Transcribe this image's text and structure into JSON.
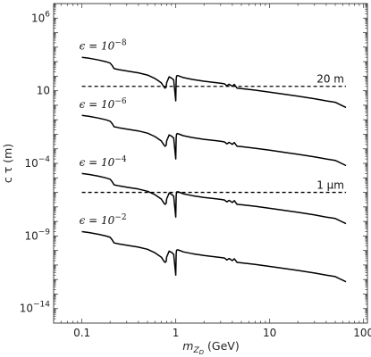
{
  "chart_data": {
    "type": "line",
    "title": "",
    "xlabel_base": "m",
    "xlabel_sub": "Z",
    "xlabel_subsub": "D",
    "xlabel_unit": " (GeV)",
    "ylabel": "c τ (m)",
    "x_scale": "log",
    "y_scale": "log",
    "xlim": [
      0.05,
      110
    ],
    "ylim": [
      1e-15,
      10000000.0
    ],
    "grid": false,
    "legend": "none",
    "x_ticks": [
      {
        "value": 0.1,
        "label": "0.1"
      },
      {
        "value": 1,
        "label": "1"
      },
      {
        "value": 10,
        "label": "10"
      },
      {
        "value": 100,
        "label": "100"
      }
    ],
    "y_ticks": [
      {
        "value": 1000000.0,
        "base": "10",
        "exp": "6"
      },
      {
        "value": 10,
        "base": "10",
        "exp": ""
      },
      {
        "value": 0.0001,
        "base": "10",
        "exp": "−4"
      },
      {
        "value": 1e-09,
        "base": "10",
        "exp": "−9"
      },
      {
        "value": 1e-14,
        "base": "10",
        "exp": "−14"
      }
    ],
    "reference_lines": [
      {
        "label": "20 m",
        "y": 20
      },
      {
        "label": "1 μm",
        "y": 1e-06
      }
    ],
    "annotations": [
      {
        "base": "ϵ = 10",
        "exp": "−8",
        "x": 0.1,
        "y": 5000.0
      },
      {
        "base": "ϵ = 10",
        "exp": "−6",
        "x": 0.1,
        "y": 0.5
      },
      {
        "base": "ϵ = 10",
        "exp": "−4",
        "x": 0.1,
        "y": 5e-05
      },
      {
        "base": "ϵ = 10",
        "exp": "−2",
        "x": 0.1,
        "y": 5e-09
      }
    ],
    "series": [
      {
        "epsilon": 1e-08,
        "x": [
          0.1,
          0.12,
          0.15,
          0.18,
          0.2,
          0.21,
          0.22,
          0.25,
          0.3,
          0.4,
          0.5,
          0.6,
          0.7,
          0.75,
          0.77,
          0.79,
          0.8,
          0.85,
          0.9,
          0.95,
          1.0,
          1.01,
          1.02,
          1.03,
          1.05,
          1.1,
          1.2,
          1.5,
          2.0,
          2.5,
          3.0,
          3.3,
          3.5,
          3.7,
          4.0,
          4.2,
          4.5,
          5,
          7,
          10,
          15,
          20,
          30,
          40,
          50,
          65
        ],
        "y": [
          2000,
          1700,
          1300,
          1000,
          800,
          550,
          330,
          280,
          230,
          170,
          120,
          70,
          35,
          18,
          15,
          18,
          35,
          90,
          75,
          55,
          2,
          60,
          100,
          110,
          110,
          100,
          80,
          60,
          45,
          38,
          33,
          30,
          22,
          28,
          20,
          27,
          15,
          14,
          11,
          8,
          5.5,
          4.2,
          2.8,
          2.0,
          1.6,
          0.7
        ]
      },
      {
        "epsilon": 1e-06,
        "x": [
          0.1,
          0.12,
          0.15,
          0.18,
          0.2,
          0.21,
          0.22,
          0.25,
          0.3,
          0.4,
          0.5,
          0.6,
          0.7,
          0.75,
          0.77,
          0.79,
          0.8,
          0.85,
          0.9,
          0.95,
          1.0,
          1.01,
          1.02,
          1.03,
          1.05,
          1.1,
          1.2,
          1.5,
          2.0,
          2.5,
          3.0,
          3.3,
          3.5,
          3.7,
          4.0,
          4.2,
          4.5,
          5,
          7,
          10,
          15,
          20,
          30,
          40,
          50,
          65
        ],
        "y": [
          0.2,
          0.17,
          0.13,
          0.1,
          0.08,
          0.055,
          0.033,
          0.028,
          0.023,
          0.017,
          0.012,
          0.007,
          0.0035,
          0.0018,
          0.0015,
          0.0018,
          0.0035,
          0.009,
          0.0075,
          0.0055,
          0.0002,
          0.006,
          0.01,
          0.011,
          0.011,
          0.01,
          0.008,
          0.006,
          0.0045,
          0.0038,
          0.0033,
          0.003,
          0.0022,
          0.0028,
          0.002,
          0.0027,
          0.0015,
          0.0014,
          0.0011,
          0.0008,
          0.00055,
          0.00042,
          0.00028,
          0.0002,
          0.00016,
          7e-05
        ]
      },
      {
        "epsilon": 0.0001,
        "x": [
          0.1,
          0.12,
          0.15,
          0.18,
          0.2,
          0.21,
          0.22,
          0.25,
          0.3,
          0.4,
          0.5,
          0.6,
          0.7,
          0.75,
          0.77,
          0.79,
          0.8,
          0.85,
          0.9,
          0.95,
          1.0,
          1.01,
          1.02,
          1.03,
          1.05,
          1.1,
          1.2,
          1.5,
          2.0,
          2.5,
          3.0,
          3.3,
          3.5,
          3.7,
          4.0,
          4.2,
          4.5,
          5,
          7,
          10,
          15,
          20,
          30,
          40,
          50,
          65
        ],
        "y": [
          2e-05,
          1.7e-05,
          1.3e-05,
          1e-05,
          8e-06,
          5.5e-06,
          3.3e-06,
          2.8e-06,
          2.3e-06,
          1.7e-06,
          1.2e-06,
          7e-07,
          3.5e-07,
          1.8e-07,
          1.5e-07,
          1.8e-07,
          3.5e-07,
          9e-07,
          7.5e-07,
          5.5e-07,
          2e-08,
          6e-07,
          1e-06,
          1.1e-06,
          1.1e-06,
          1e-06,
          8e-07,
          6e-07,
          4.5e-07,
          3.8e-07,
          3.3e-07,
          3e-07,
          2.2e-07,
          2.8e-07,
          2e-07,
          2.7e-07,
          1.5e-07,
          1.4e-07,
          1.1e-07,
          8e-08,
          5.5e-08,
          4.2e-08,
          2.8e-08,
          2e-08,
          1.6e-08,
          7e-09
        ]
      },
      {
        "epsilon": 0.01,
        "x": [
          0.1,
          0.12,
          0.15,
          0.18,
          0.2,
          0.21,
          0.22,
          0.25,
          0.3,
          0.4,
          0.5,
          0.6,
          0.7,
          0.75,
          0.77,
          0.79,
          0.8,
          0.85,
          0.9,
          0.95,
          1.0,
          1.01,
          1.02,
          1.03,
          1.05,
          1.1,
          1.2,
          1.5,
          2.0,
          2.5,
          3.0,
          3.3,
          3.5,
          3.7,
          4.0,
          4.2,
          4.5,
          5,
          7,
          10,
          15,
          20,
          30,
          40,
          50,
          65
        ],
        "y": [
          2e-09,
          1.7e-09,
          1.3e-09,
          1e-09,
          8e-10,
          5.5e-10,
          3.3e-10,
          2.8e-10,
          2.3e-10,
          1.7e-10,
          1.2e-10,
          7e-11,
          3.5e-11,
          1.8e-11,
          1.5e-11,
          1.8e-11,
          3.5e-11,
          9e-11,
          7.5e-11,
          5.5e-11,
          2e-12,
          6e-11,
          1e-10,
          1.1e-10,
          1.1e-10,
          1e-10,
          8e-11,
          6e-11,
          4.5e-11,
          3.8e-11,
          3.3e-11,
          3e-11,
          2.2e-11,
          2.8e-11,
          2e-11,
          2.7e-11,
          1.5e-11,
          1.4e-11,
          1.1e-11,
          8e-12,
          5.5e-12,
          4.2e-12,
          2.8e-12,
          2e-12,
          1.6e-12,
          7e-13
        ]
      }
    ]
  }
}
